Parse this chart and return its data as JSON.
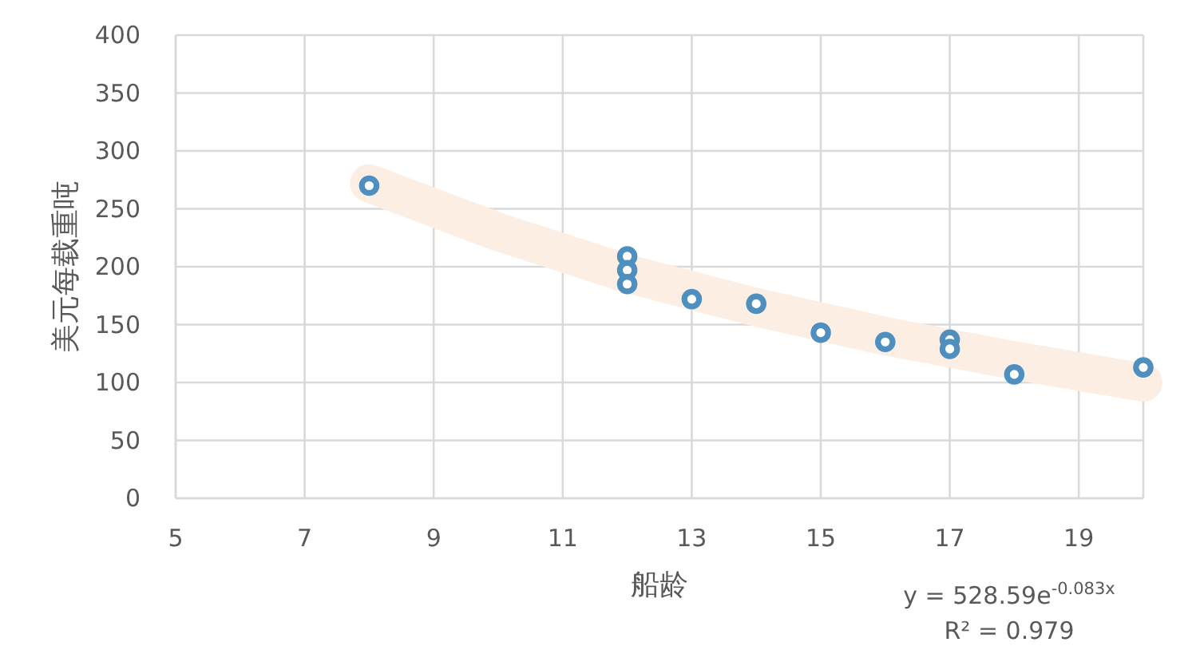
{
  "chart_data": {
    "type": "scatter",
    "xlabel": "船龄",
    "ylabel": "美元每载重吨",
    "xlim": [
      5,
      20
    ],
    "xticks": [
      5,
      7,
      9,
      11,
      13,
      15,
      17,
      19
    ],
    "ylim": [
      0,
      400
    ],
    "yticks": [
      0,
      50,
      100,
      150,
      200,
      250,
      300,
      350,
      400
    ],
    "grid": true,
    "marker": "circle",
    "series": [
      {
        "type": "line",
        "marker": "none",
        "color": "#fdeee3",
        "x": [
          8,
          10,
          12,
          14,
          16,
          18,
          20
        ],
        "values": [
          272,
          230,
          194,
          165,
          140,
          119,
          100
        ]
      },
      {
        "color": "#4e8fbf",
        "x": [
          8,
          12,
          12,
          12,
          13,
          14,
          15,
          16,
          17,
          17,
          18,
          20
        ],
        "values": [
          270,
          209,
          197,
          185,
          172,
          168,
          143,
          135,
          137,
          129,
          107,
          113
        ]
      }
    ],
    "annotations": [
      "y = 528.59e$^{-0.083x}$",
      "R² = 0.979"
    ]
  }
}
